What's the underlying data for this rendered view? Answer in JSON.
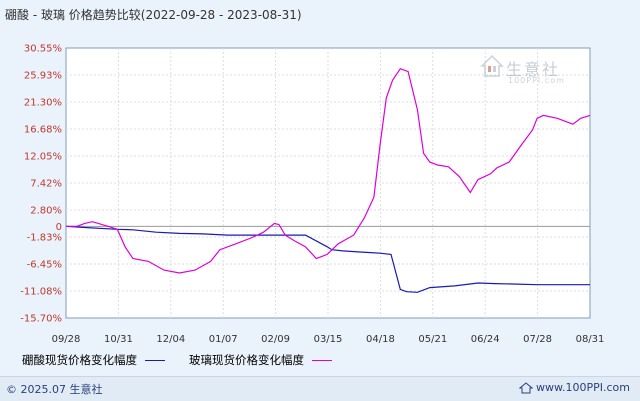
{
  "title": "硼酸 - 玻璃 价格趋势比较(2022-09-28 - 2023-08-31)",
  "legend": [
    {
      "label": "硼酸现货价格变化幅度",
      "color": "#1a1ab4"
    },
    {
      "label": "玻璃现货价格变化幅度",
      "color": "#dd00dd"
    }
  ],
  "footer": {
    "copyright": "© 2025.07 生意社",
    "site": "www.100PPI.com"
  },
  "watermark": {
    "brand": "生意社",
    "sub": "100PPI.com"
  },
  "colors": {
    "background": "#eaf2fb",
    "plot_background": "#ffffff",
    "boric_acid": "#1a1ab4",
    "glass": "#dd00dd",
    "ytick": "#c0392b"
  },
  "chart_data": {
    "type": "line",
    "title": "硼酸 - 玻璃 价格趋势比较(2022-09-28 - 2023-08-31)",
    "xlabel": "",
    "ylabel": "",
    "x_ticks": [
      "09/28",
      "10/31",
      "12/04",
      "01/07",
      "02/09",
      "03/15",
      "04/18",
      "05/21",
      "06/24",
      "07/28",
      "08/31"
    ],
    "y_ticks": [
      "30.55%",
      "25.93%",
      "21.30%",
      "16.68%",
      "12.05%",
      "7.42%",
      "2.80%",
      "0",
      "-1.83%",
      "-6.45%",
      "-11.08%",
      "-15.70%"
    ],
    "ylim": [
      -15.7,
      30.55
    ],
    "grid": true,
    "legend_position": "bottom",
    "series": [
      {
        "name": "硼酸现货价格变化幅度",
        "x": [
          "2022-09-28",
          "2022-10-10",
          "2022-10-31",
          "2022-11-10",
          "2022-11-25",
          "2022-12-10",
          "2022-12-25",
          "2023-01-10",
          "2023-01-25",
          "2023-02-05",
          "2023-02-15",
          "2023-02-25",
          "2023-03-01",
          "2023-03-15",
          "2023-03-18",
          "2023-03-25",
          "2023-04-05",
          "2023-04-12",
          "2023-04-18",
          "2023-04-25",
          "2023-05-01",
          "2023-05-05",
          "2023-05-12",
          "2023-05-20",
          "2023-06-05",
          "2023-06-20",
          "2023-07-01",
          "2023-07-15",
          "2023-07-28",
          "2023-08-15",
          "2023-08-31"
        ],
        "y": [
          0,
          -0.2,
          -0.5,
          -0.6,
          -1.0,
          -1.2,
          -1.3,
          -1.5,
          -1.5,
          -1.5,
          -1.5,
          -1.5,
          -1.5,
          -3.5,
          -4.0,
          -4.2,
          -4.4,
          -4.5,
          -4.6,
          -4.8,
          -10.8,
          -11.2,
          -11.3,
          -10.5,
          -10.2,
          -9.7,
          -9.8,
          -9.9,
          -10.0,
          -10.0,
          -10.0
        ]
      },
      {
        "name": "玻璃现货价格变化幅度",
        "x": [
          "2022-09-28",
          "2022-10-05",
          "2022-10-10",
          "2022-10-15",
          "2022-10-25",
          "2022-10-31",
          "2022-11-05",
          "2022-11-10",
          "2022-11-20",
          "2022-11-30",
          "2022-12-10",
          "2022-12-20",
          "2022-12-30",
          "2023-01-05",
          "2023-01-15",
          "2023-01-25",
          "2023-02-02",
          "2023-02-09",
          "2023-02-12",
          "2023-02-16",
          "2023-02-22",
          "2023-03-01",
          "2023-03-08",
          "2023-03-15",
          "2023-03-22",
          "2023-04-01",
          "2023-04-08",
          "2023-04-14",
          "2023-04-18",
          "2023-04-22",
          "2023-04-26",
          "2023-05-01",
          "2023-05-06",
          "2023-05-12",
          "2023-05-16",
          "2023-05-20",
          "2023-05-25",
          "2023-06-01",
          "2023-06-08",
          "2023-06-15",
          "2023-06-20",
          "2023-06-24",
          "2023-06-28",
          "2023-07-02",
          "2023-07-10",
          "2023-07-18",
          "2023-07-25",
          "2023-07-28",
          "2023-08-01",
          "2023-08-10",
          "2023-08-20",
          "2023-08-25",
          "2023-08-31"
        ],
        "y": [
          0,
          0,
          0.5,
          0.8,
          0,
          -0.5,
          -3.5,
          -5.5,
          -6.0,
          -7.5,
          -8.0,
          -7.5,
          -6.0,
          -4.0,
          -3.0,
          -2.0,
          -1.0,
          0.5,
          0.3,
          -1.5,
          -2.5,
          -3.5,
          -5.5,
          -4.8,
          -3.0,
          -1.5,
          1.5,
          5.0,
          14.0,
          22.0,
          25.0,
          27.0,
          26.5,
          20.0,
          12.5,
          11.0,
          10.5,
          10.2,
          8.5,
          5.8,
          8.0,
          8.5,
          9.0,
          10.0,
          11.0,
          14.0,
          16.5,
          18.5,
          19.0,
          18.5,
          17.5,
          18.5,
          19.0
        ]
      }
    ]
  }
}
